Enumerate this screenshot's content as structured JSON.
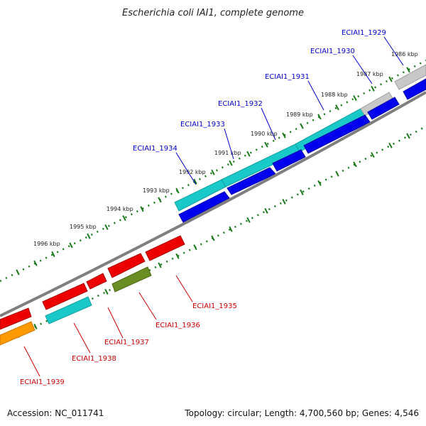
{
  "title": "Escherichia coli IAI1, complete genome",
  "footer": {
    "accession": "Accession: NC_011741",
    "summary": "Topology: circular; Length: 4,700,560 bp; Genes: 4,546"
  },
  "colors": {
    "backbone": "#7f7f7f",
    "tick": "#1a7a1a",
    "plus_label": "#0000cc",
    "minus_label": "#cc0000",
    "cyan": "#19c8c8",
    "blue": "#0000ee",
    "red": "#ee0000",
    "olive": "#6b8e23",
    "orange": "#ff9900",
    "gray": "#c8c8c8"
  },
  "scale": {
    "ticks": [
      {
        "label": "1986 kbp"
      },
      {
        "label": "1987 kbp"
      },
      {
        "label": "1988 kbp"
      },
      {
        "label": "1989 kbp"
      },
      {
        "label": "1990 kbp"
      },
      {
        "label": "1991 kbp"
      },
      {
        "label": "1992 kbp"
      },
      {
        "label": "1993 kbp"
      },
      {
        "label": "1994 kbp"
      },
      {
        "label": "1995 kbp"
      },
      {
        "label": "1996 kbp"
      }
    ]
  },
  "genes": {
    "plus": [
      {
        "label": "ECIAI1_1929"
      },
      {
        "label": "ECIAI1_1930"
      },
      {
        "label": "ECIAI1_1931"
      },
      {
        "label": "ECIAI1_1932"
      },
      {
        "label": "ECIAI1_1933"
      },
      {
        "label": "ECIAI1_1934"
      }
    ],
    "minus": [
      {
        "label": "ECIAI1_1935"
      },
      {
        "label": "ECIAI1_1936"
      },
      {
        "label": "ECIAI1_1937"
      },
      {
        "label": "ECIAI1_1938"
      },
      {
        "label": "ECIAI1_1939"
      }
    ]
  }
}
